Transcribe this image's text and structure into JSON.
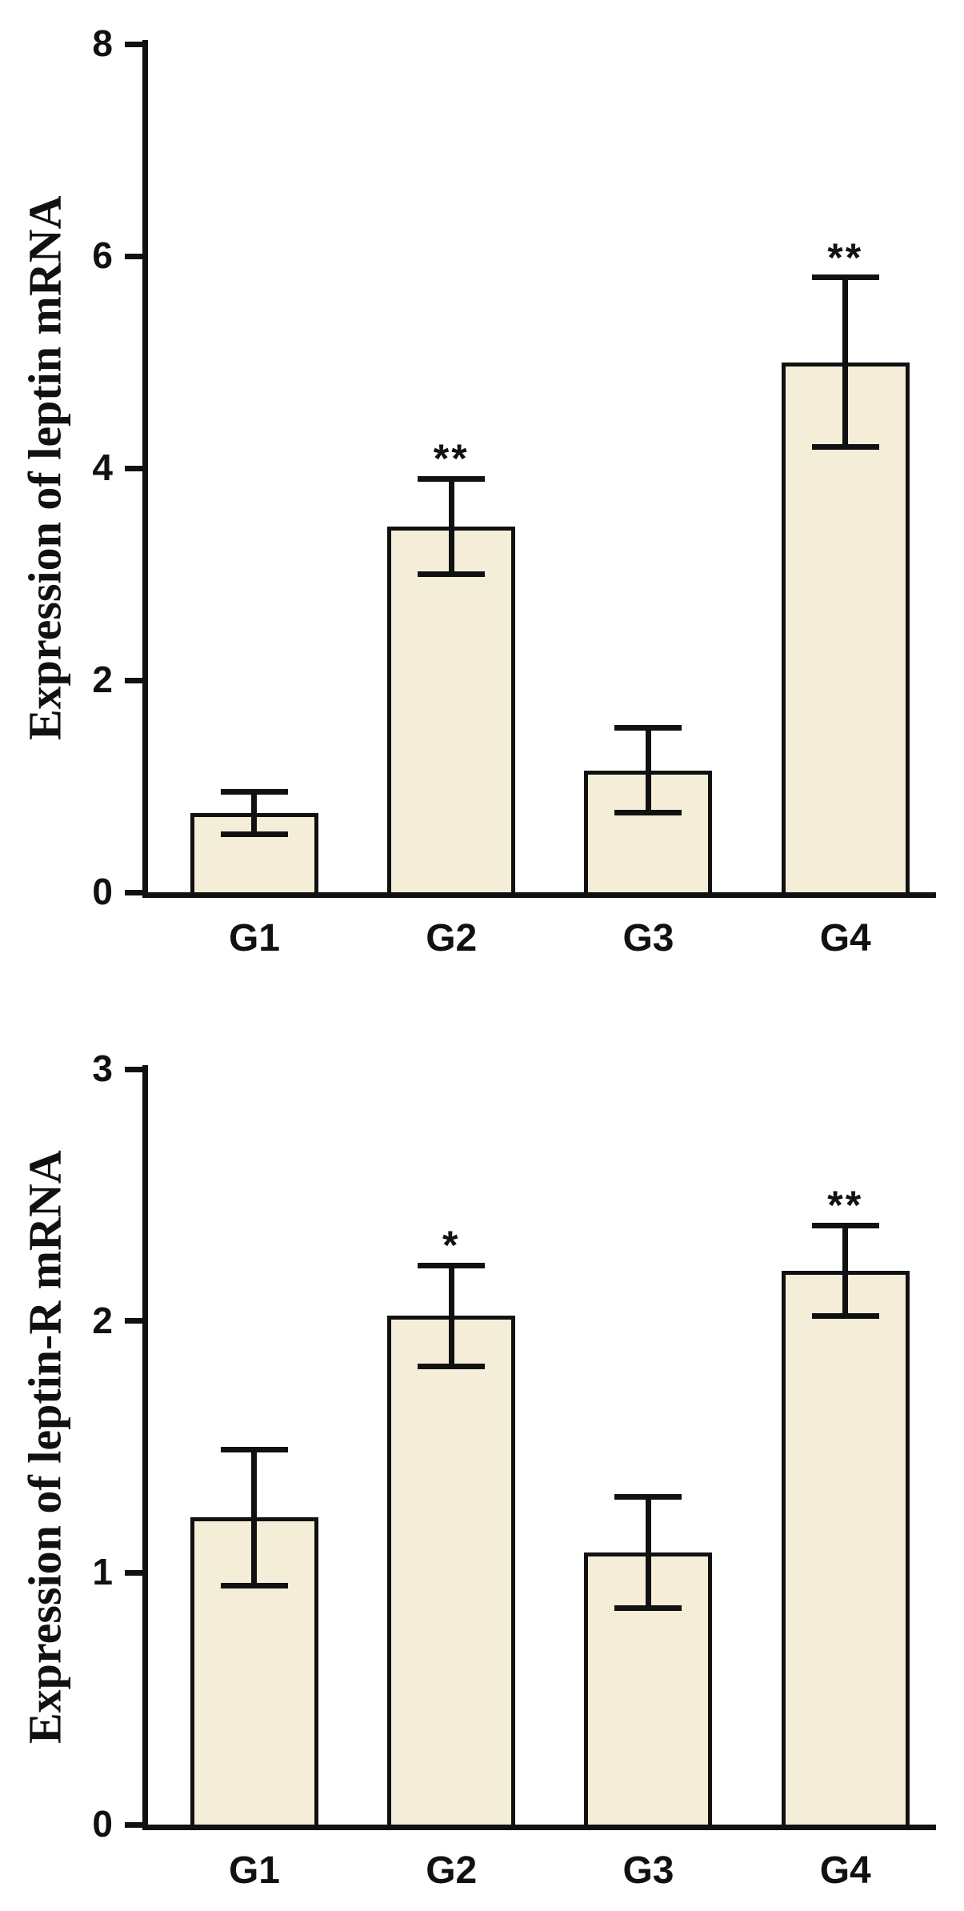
{
  "figure_background": "#ffffff",
  "axis_color": "#111111",
  "chart_data": [
    {
      "type": "bar",
      "ylabel": "Expression of leptin mRNA",
      "categories": [
        "G1",
        "G2",
        "G3",
        "G4"
      ],
      "values": [
        0.75,
        3.45,
        1.15,
        5.0
      ],
      "errors": [
        0.2,
        0.45,
        0.4,
        0.8
      ],
      "significance": [
        "",
        "**",
        "",
        "**"
      ],
      "yticks": [
        0,
        2,
        4,
        6,
        8
      ],
      "ylim": [
        0,
        8
      ],
      "bar_fill": "#f4edd8",
      "bar_border": "#111111",
      "grid": false,
      "legend": "none"
    },
    {
      "type": "bar",
      "ylabel": "Expression of leptin-R mRNA",
      "categories": [
        "G1",
        "G2",
        "G3",
        "G4"
      ],
      "values": [
        1.22,
        2.02,
        1.08,
        2.2
      ],
      "errors": [
        0.27,
        0.2,
        0.22,
        0.18
      ],
      "significance": [
        "",
        "*",
        "",
        "**"
      ],
      "yticks": [
        0,
        1,
        2,
        3
      ],
      "ylim": [
        0,
        3
      ],
      "bar_fill": "#f4edd8",
      "bar_border": "#111111",
      "grid": false,
      "legend": "none"
    }
  ]
}
